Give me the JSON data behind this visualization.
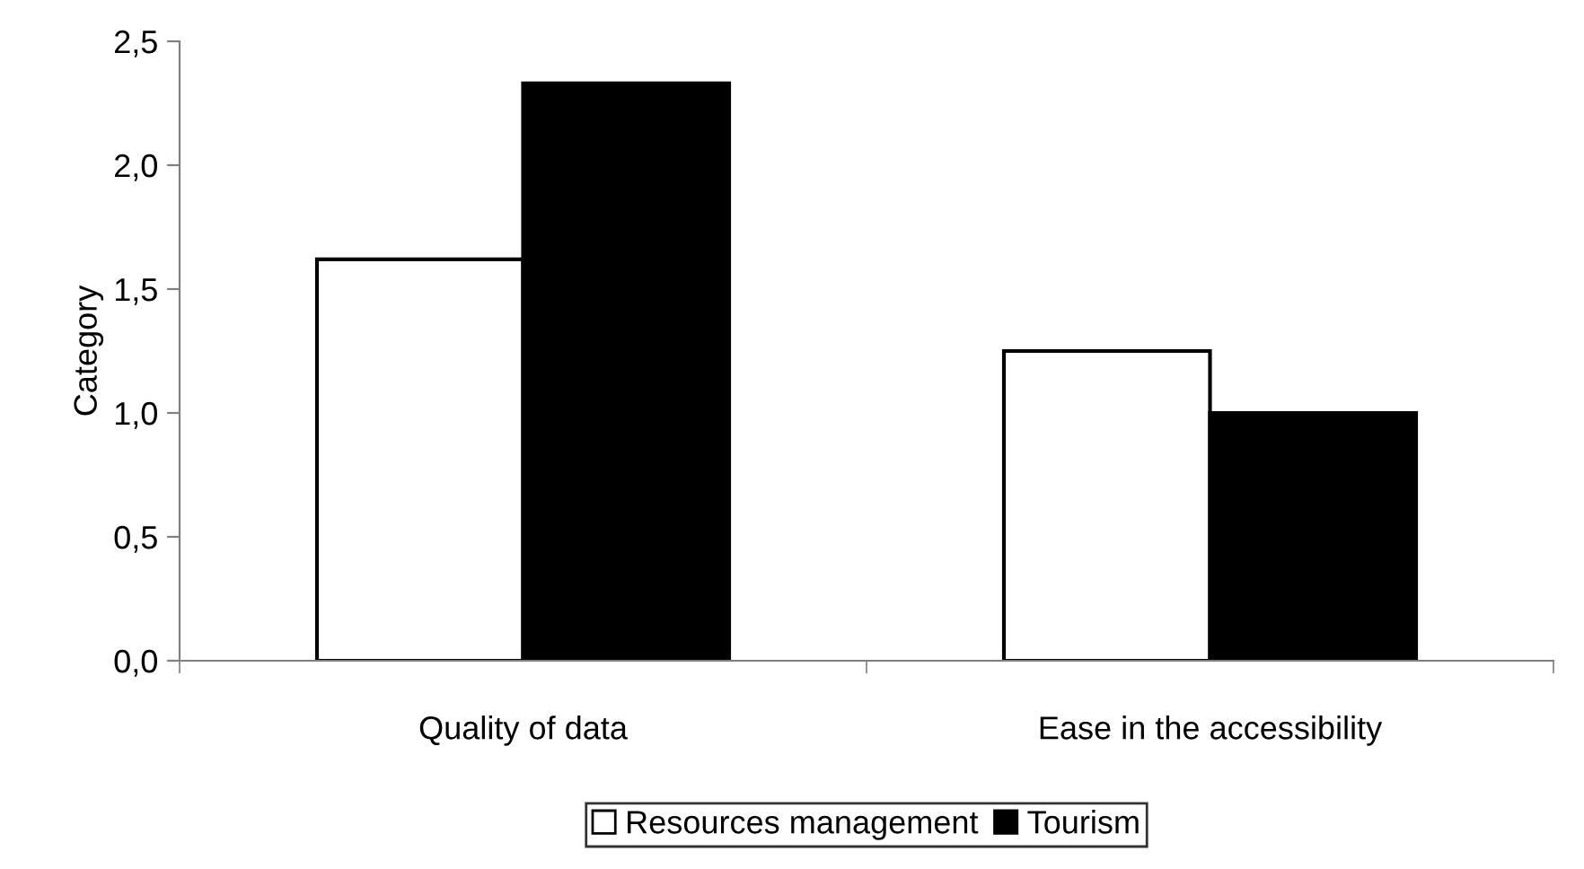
{
  "chart_data": {
    "type": "bar",
    "ylabel": "Category",
    "categories": [
      "Quality of data",
      "Ease in the accessibility"
    ],
    "series": [
      {
        "name": "Resources management",
        "color": "#ffffff",
        "values": [
          1.62,
          1.25
        ]
      },
      {
        "name": "Tourism",
        "color": "#000000",
        "values": [
          2.33,
          1.0
        ]
      }
    ],
    "ylim": [
      0,
      2.5
    ],
    "yticks": [
      {
        "value": 0,
        "label": "0,0"
      },
      {
        "value": 0.5,
        "label": "0,5"
      },
      {
        "value": 1,
        "label": "1,0"
      },
      {
        "value": 1.5,
        "label": "1,5"
      },
      {
        "value": 2,
        "label": "2,0"
      },
      {
        "value": 2.5,
        "label": "2,5"
      }
    ],
    "grid": false,
    "legend": "bottom"
  }
}
